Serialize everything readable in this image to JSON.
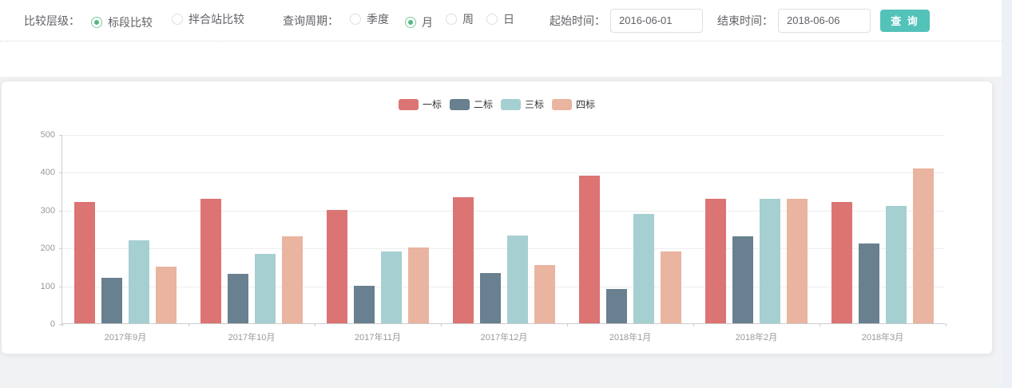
{
  "filter_bar": {
    "compare_level": {
      "label": "比较层级：",
      "options": [
        {
          "label": "标段比较",
          "selected": true
        },
        {
          "label": "拌合站比较",
          "selected": false
        }
      ]
    },
    "query_period": {
      "label": "查询周期：",
      "options": [
        {
          "label": "季度",
          "selected": false
        },
        {
          "label": "月",
          "selected": true
        },
        {
          "label": "周",
          "selected": false
        },
        {
          "label": "日",
          "selected": false
        }
      ]
    },
    "start_time": {
      "label": "起始时间：",
      "value": "2016-06-01"
    },
    "end_time": {
      "label": "结束时间：",
      "value": "2018-06-06"
    },
    "query_button_label": "查 询"
  },
  "colors": {
    "button_teal": "#53c3ba",
    "radio_selected_green": "#53b87e",
    "axis_text": "#999999",
    "gridline": "#eeeeee",
    "card_background": "#ffffff",
    "page_background": "#f1f2f4"
  },
  "chart_data": {
    "type": "bar",
    "title": "",
    "categories": [
      "2017年9月",
      "2017年10月",
      "2017年11月",
      "2017年12月",
      "2018年1月",
      "2018年2月",
      "2018年3月"
    ],
    "series": [
      {
        "name": "一标",
        "color": "#dc7474",
        "values": [
          320,
          330,
          300,
          333,
          390,
          330,
          320
        ]
      },
      {
        "name": "二标",
        "color": "#68808f",
        "values": [
          120,
          130,
          100,
          133,
          90,
          230,
          210
        ]
      },
      {
        "name": "三标",
        "color": "#a6cfd1",
        "values": [
          220,
          183,
          190,
          233,
          290,
          330,
          310
        ]
      },
      {
        "name": "四标",
        "color": "#e9b4a0",
        "values": [
          150,
          230,
          200,
          154,
          190,
          330,
          410
        ]
      }
    ],
    "xlabel": "",
    "ylabel": "",
    "ylim": [
      0,
      500
    ],
    "y_ticks": [
      0,
      100,
      200,
      300,
      400,
      500
    ],
    "grid": true,
    "legend_position": "top-center"
  }
}
